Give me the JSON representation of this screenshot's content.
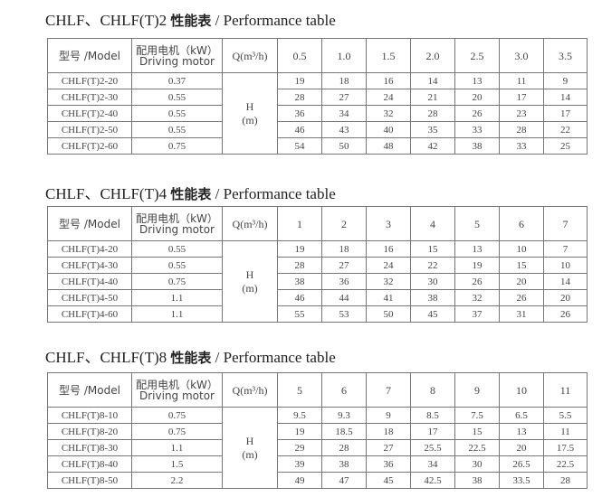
{
  "header_labels": {
    "model": "型号 /Model",
    "motor_cn": "配用电机（kW）",
    "motor_en": "Driving motor",
    "q": "Q(m³/h)",
    "h": "H",
    "h_unit": "(m)"
  },
  "tables": [
    {
      "title_prefix": "CHLF、CHLF(T)2 ",
      "title_cn": "性能表",
      "title_en": " / Performance table",
      "flows": [
        "0.5",
        "1.0",
        "1.5",
        "2.0",
        "2.5",
        "3.0",
        "3.5"
      ],
      "rows": [
        {
          "model": "CHLF(T)2-20",
          "motor": "0.37",
          "h": [
            "19",
            "18",
            "16",
            "14",
            "13",
            "11",
            "9"
          ]
        },
        {
          "model": "CHLF(T)2-30",
          "motor": "0.55",
          "h": [
            "28",
            "27",
            "24",
            "21",
            "20",
            "17",
            "14"
          ]
        },
        {
          "model": "CHLF(T)2-40",
          "motor": "0.55",
          "h": [
            "36",
            "34",
            "32",
            "28",
            "26",
            "23",
            "17"
          ]
        },
        {
          "model": "CHLF(T)2-50",
          "motor": "0.55",
          "h": [
            "46",
            "43",
            "40",
            "35",
            "33",
            "28",
            "22"
          ]
        },
        {
          "model": "CHLF(T)2-60",
          "motor": "0.75",
          "h": [
            "54",
            "50",
            "48",
            "42",
            "38",
            "33",
            "25"
          ]
        }
      ]
    },
    {
      "title_prefix": "CHLF、CHLF(T)4  ",
      "title_cn": "性能表",
      "title_en": " / Performance table",
      "flows": [
        "1",
        "2",
        "3",
        "4",
        "5",
        "6",
        "7"
      ],
      "rows": [
        {
          "model": "CHLF(T)4-20",
          "motor": "0.55",
          "h": [
            "19",
            "18",
            "16",
            "15",
            "13",
            "10",
            "7"
          ]
        },
        {
          "model": "CHLF(T)4-30",
          "motor": "0.55",
          "h": [
            "28",
            "27",
            "24",
            "22",
            "19",
            "15",
            "10"
          ]
        },
        {
          "model": "CHLF(T)4-40",
          "motor": "0.75",
          "h": [
            "38",
            "36",
            "32",
            "30",
            "26",
            "20",
            "14"
          ]
        },
        {
          "model": "CHLF(T)4-50",
          "motor": "1.1",
          "h": [
            "46",
            "44",
            "41",
            "38",
            "32",
            "26",
            "20"
          ]
        },
        {
          "model": "CHLF(T)4-60",
          "motor": "1.1",
          "h": [
            "55",
            "53",
            "50",
            "45",
            "37",
            "31",
            "26"
          ]
        }
      ]
    },
    {
      "title_prefix": "CHLF、CHLF(T)8  ",
      "title_cn": "性能表",
      "title_en": " / Performance table",
      "flows": [
        "5",
        "6",
        "7",
        "8",
        "9",
        "10",
        "11"
      ],
      "rows": [
        {
          "model": "CHLF(T)8-10",
          "motor": "0.75",
          "h": [
            "9.5",
            "9.3",
            "9",
            "8.5",
            "7.5",
            "6.5",
            "5.5"
          ]
        },
        {
          "model": "CHLF(T)8-20",
          "motor": "0.75",
          "h": [
            "19",
            "18.5",
            "18",
            "17",
            "15",
            "13",
            "11"
          ]
        },
        {
          "model": "CHLF(T)8-30",
          "motor": "1.1",
          "h": [
            "29",
            "28",
            "27",
            "25.5",
            "22.5",
            "20",
            "17.5"
          ]
        },
        {
          "model": "CHLF(T)8-40",
          "motor": "1.5",
          "h": [
            "39",
            "38",
            "36",
            "34",
            "30",
            "26.5",
            "22.5"
          ]
        },
        {
          "model": "CHLF(T)8-50",
          "motor": "2.2",
          "h": [
            "49",
            "47",
            "45",
            "42.5",
            "38",
            "33.5",
            "28"
          ]
        }
      ]
    }
  ]
}
